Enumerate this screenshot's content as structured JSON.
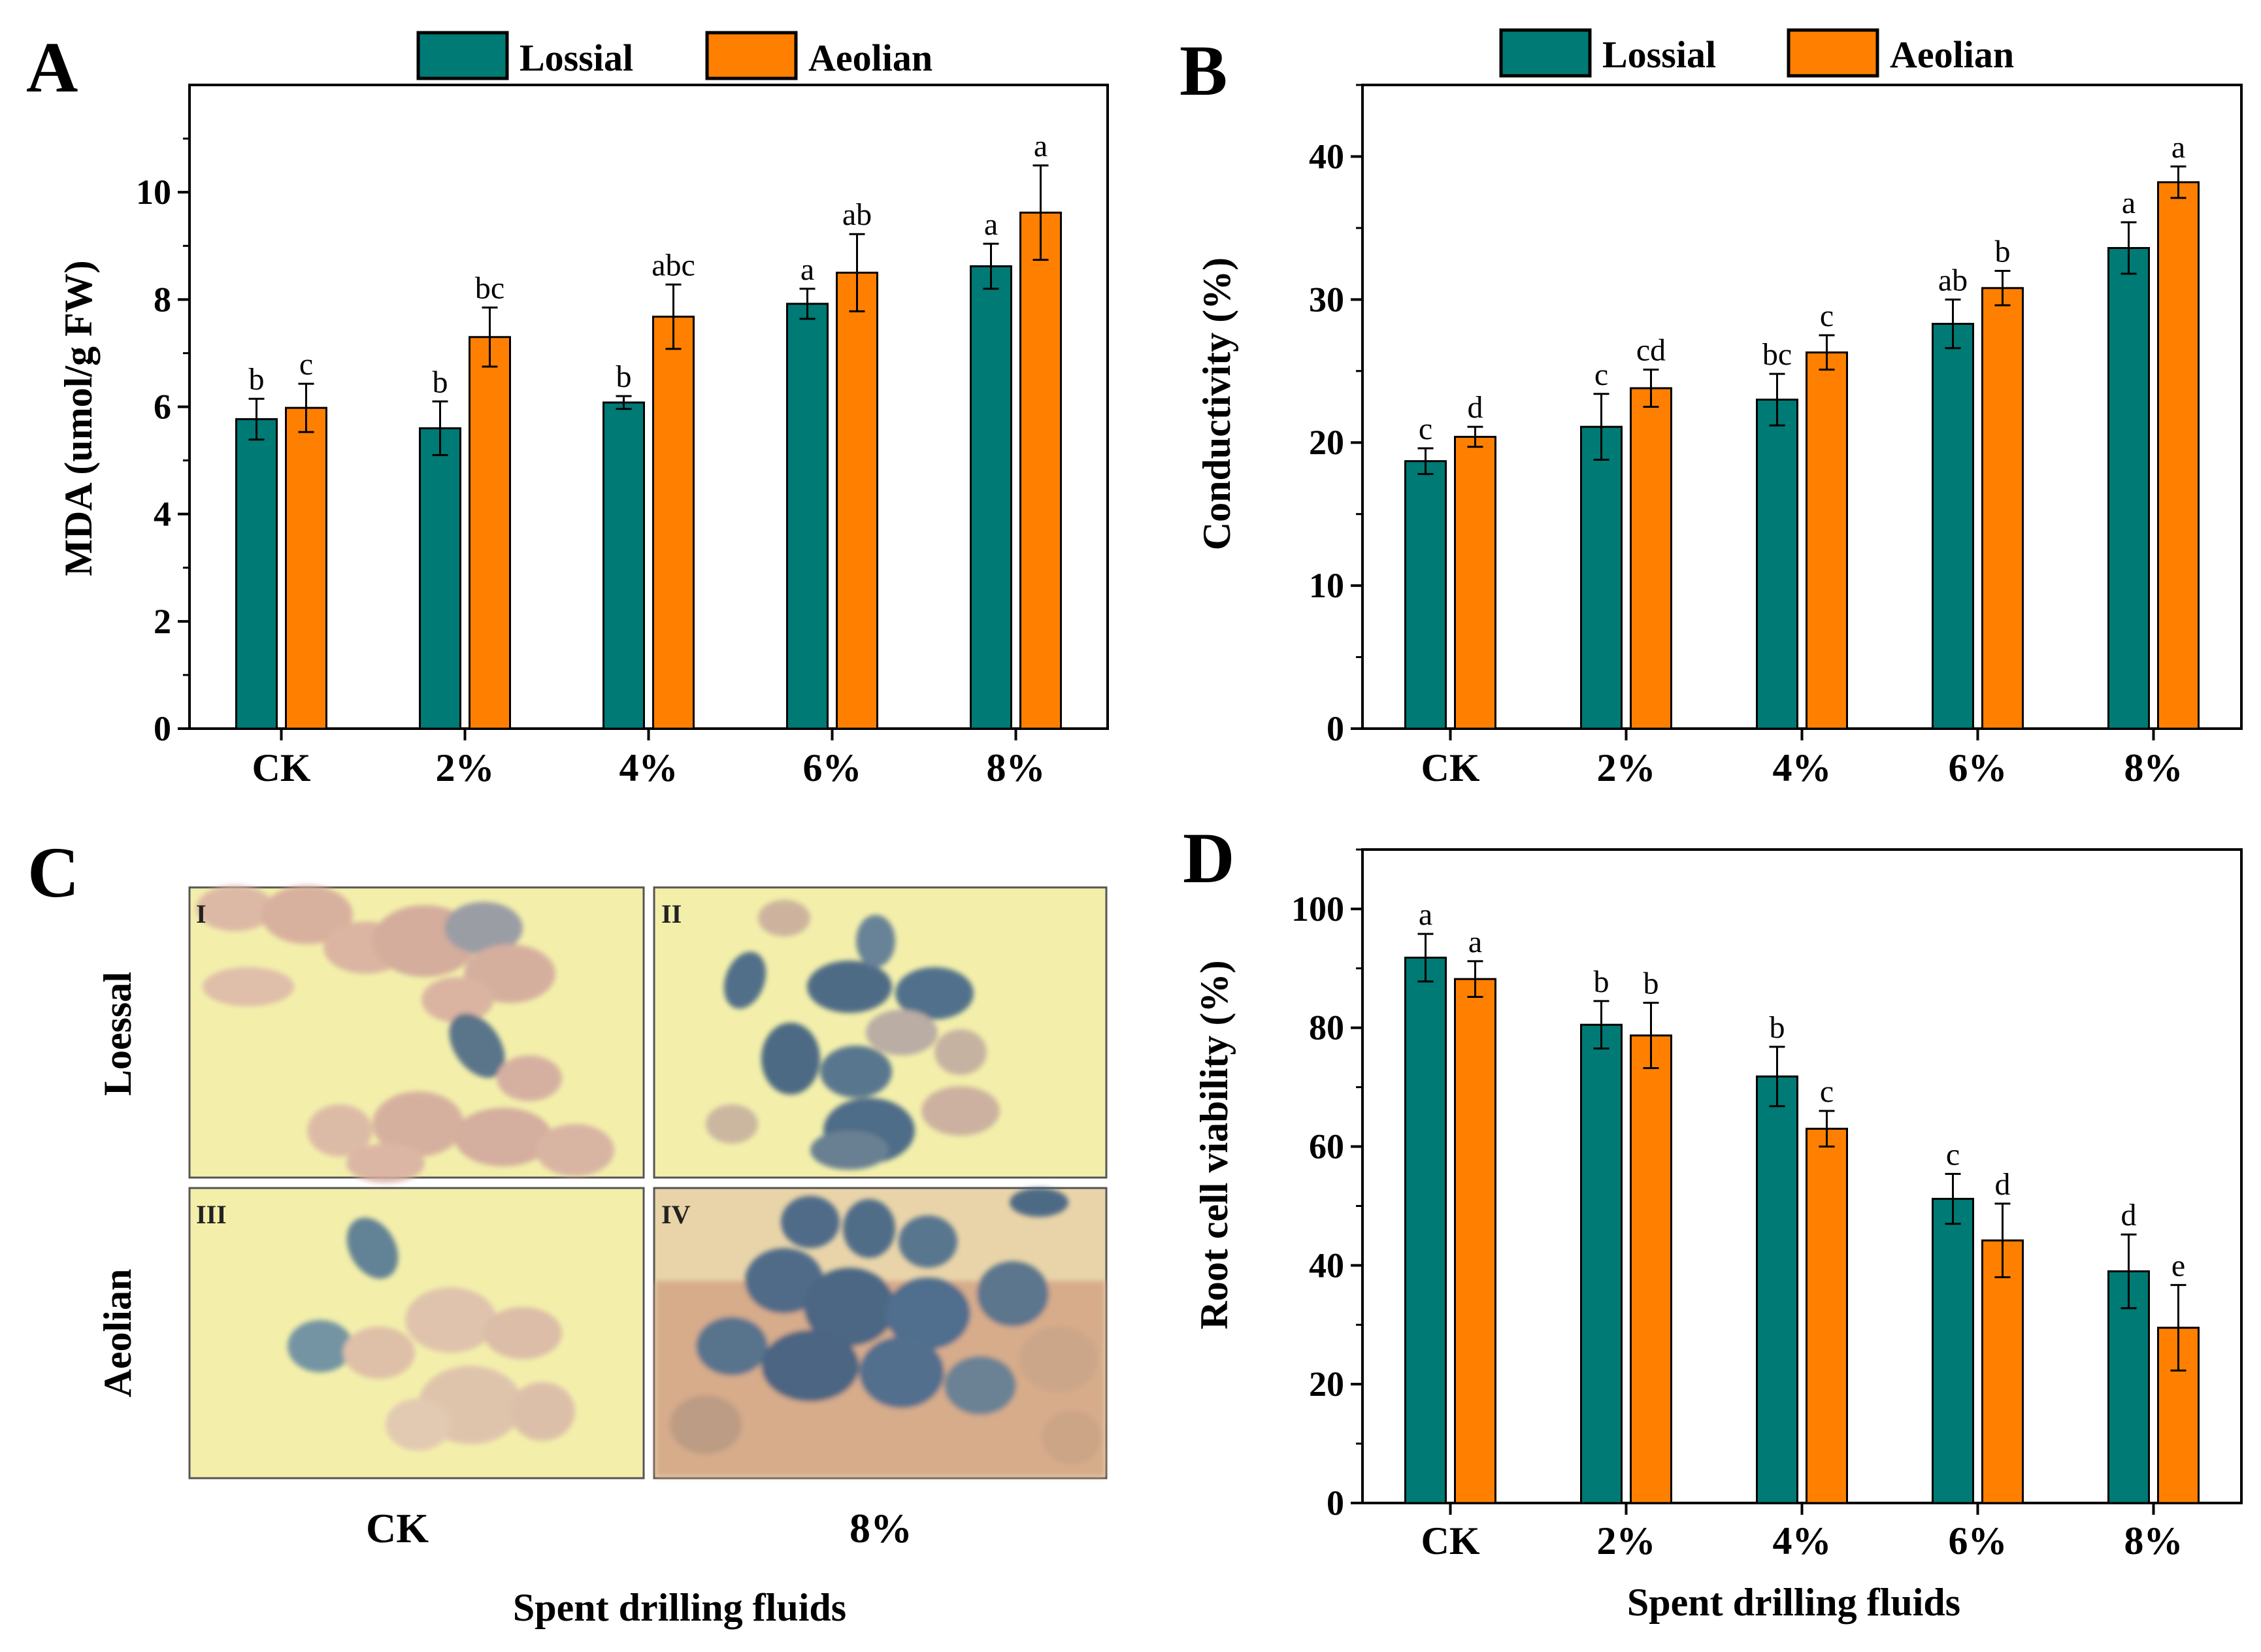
{
  "colors": {
    "lossial": "#007a74",
    "aeolian": "#ff8000",
    "micro_bg": "#f3efab",
    "cell_pink": "#d7aaa3",
    "cell_blue": "#466f8e"
  },
  "legend": {
    "series1": "Lossial",
    "series2": "Aeolian"
  },
  "chart_data": [
    {
      "panel": "A",
      "type": "bar",
      "ylabel": "MDA (umol/g FW)",
      "xlabel": "",
      "ylim": [
        0,
        12
      ],
      "yticks": [
        0,
        2,
        4,
        6,
        8,
        10
      ],
      "categories": [
        "CK",
        "2%",
        "4%",
        "6%",
        "8%"
      ],
      "series": [
        {
          "name": "Lossial",
          "values": [
            5.77,
            5.6,
            6.08,
            7.92,
            8.62
          ],
          "errors": [
            0.38,
            0.5,
            0.12,
            0.28,
            0.42
          ],
          "letters": [
            "b",
            "b",
            "b",
            "a",
            "a"
          ]
        },
        {
          "name": "Aeolian",
          "values": [
            5.98,
            7.3,
            7.68,
            8.5,
            9.62
          ],
          "errors": [
            0.45,
            0.55,
            0.6,
            0.72,
            0.88
          ],
          "letters": [
            "c",
            "bc",
            "abc",
            "ab",
            "a"
          ]
        }
      ]
    },
    {
      "panel": "B",
      "type": "bar",
      "ylabel": "Conductivity (%)",
      "xlabel": "",
      "ylim": [
        0,
        45
      ],
      "yticks": [
        0,
        10,
        20,
        30,
        40
      ],
      "categories": [
        "CK",
        "2%",
        "4%",
        "6%",
        "8%"
      ],
      "series": [
        {
          "name": "Lossial",
          "values": [
            18.7,
            21.1,
            23.0,
            28.3,
            33.6
          ],
          "errors": [
            0.9,
            2.3,
            1.8,
            1.7,
            1.8
          ],
          "letters": [
            "c",
            "c",
            "bc",
            "ab",
            "a"
          ]
        },
        {
          "name": "Aeolian",
          "values": [
            20.4,
            23.8,
            26.3,
            30.8,
            38.2
          ],
          "errors": [
            0.7,
            1.3,
            1.2,
            1.2,
            1.1
          ],
          "letters": [
            "d",
            "cd",
            "c",
            "b",
            "a"
          ]
        }
      ]
    },
    {
      "panel": "D",
      "type": "bar",
      "ylabel": "Root cell viability (%)",
      "xlabel": "Spent drilling fluids",
      "ylim": [
        0,
        110
      ],
      "yticks": [
        0,
        20,
        40,
        60,
        80,
        100
      ],
      "categories": [
        "CK",
        "2%",
        "4%",
        "6%",
        "8%"
      ],
      "series": [
        {
          "name": "Lossial",
          "values": [
            91.8,
            80.5,
            71.8,
            51.2,
            39.0
          ],
          "errors": [
            4.0,
            4.0,
            5.0,
            4.2,
            6.2
          ],
          "letters": [
            "a",
            "b",
            "b",
            "c",
            "d"
          ]
        },
        {
          "name": "Aeolian",
          "values": [
            88.2,
            78.7,
            63.0,
            44.2,
            29.5
          ],
          "errors": [
            3.0,
            5.5,
            3.0,
            6.2,
            7.2
          ],
          "letters": [
            "a",
            "b",
            "c",
            "d",
            "e"
          ]
        }
      ]
    }
  ],
  "panel_c": {
    "letter": "C",
    "row_labels": [
      "Loessal",
      "Aeolian"
    ],
    "col_labels": [
      "CK",
      "8%"
    ],
    "image_labels": [
      "I",
      "II",
      "III",
      "IV"
    ],
    "xlabel": "Spent drilling fluids"
  }
}
